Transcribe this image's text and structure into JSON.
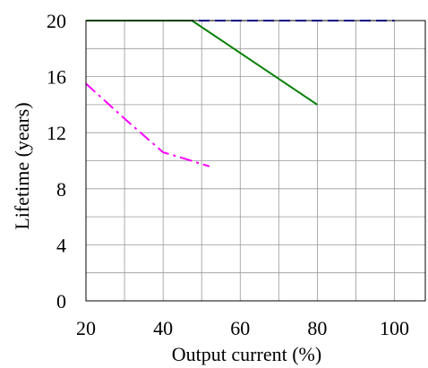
{
  "chart_data": {
    "type": "line",
    "title": "",
    "xlabel": "Output current (%)",
    "ylabel": "Lifetime (years)",
    "xlim": [
      20,
      108
    ],
    "ylim": [
      0,
      20
    ],
    "xticks": [
      20,
      40,
      60,
      80,
      100
    ],
    "yticks": [
      0,
      4,
      8,
      12,
      16,
      20
    ],
    "grid": true,
    "legend": "none",
    "series": [
      {
        "color": "#0000ff",
        "style": "dashed",
        "x": [
          20,
          30,
          40,
          50,
          60,
          70,
          80,
          90,
          100
        ],
        "y": [
          20,
          20,
          20,
          20,
          20,
          20,
          20,
          20,
          20
        ]
      },
      {
        "color": "#008000",
        "style": "solid",
        "x": [
          20,
          47.5,
          80
        ],
        "y": [
          20,
          20,
          14
        ]
      },
      {
        "color": "#ff00ff",
        "style": "dashdot",
        "x": [
          20,
          30,
          40,
          45,
          52
        ],
        "y": [
          15.5,
          13,
          10.6,
          10.2,
          9.6
        ]
      }
    ]
  }
}
